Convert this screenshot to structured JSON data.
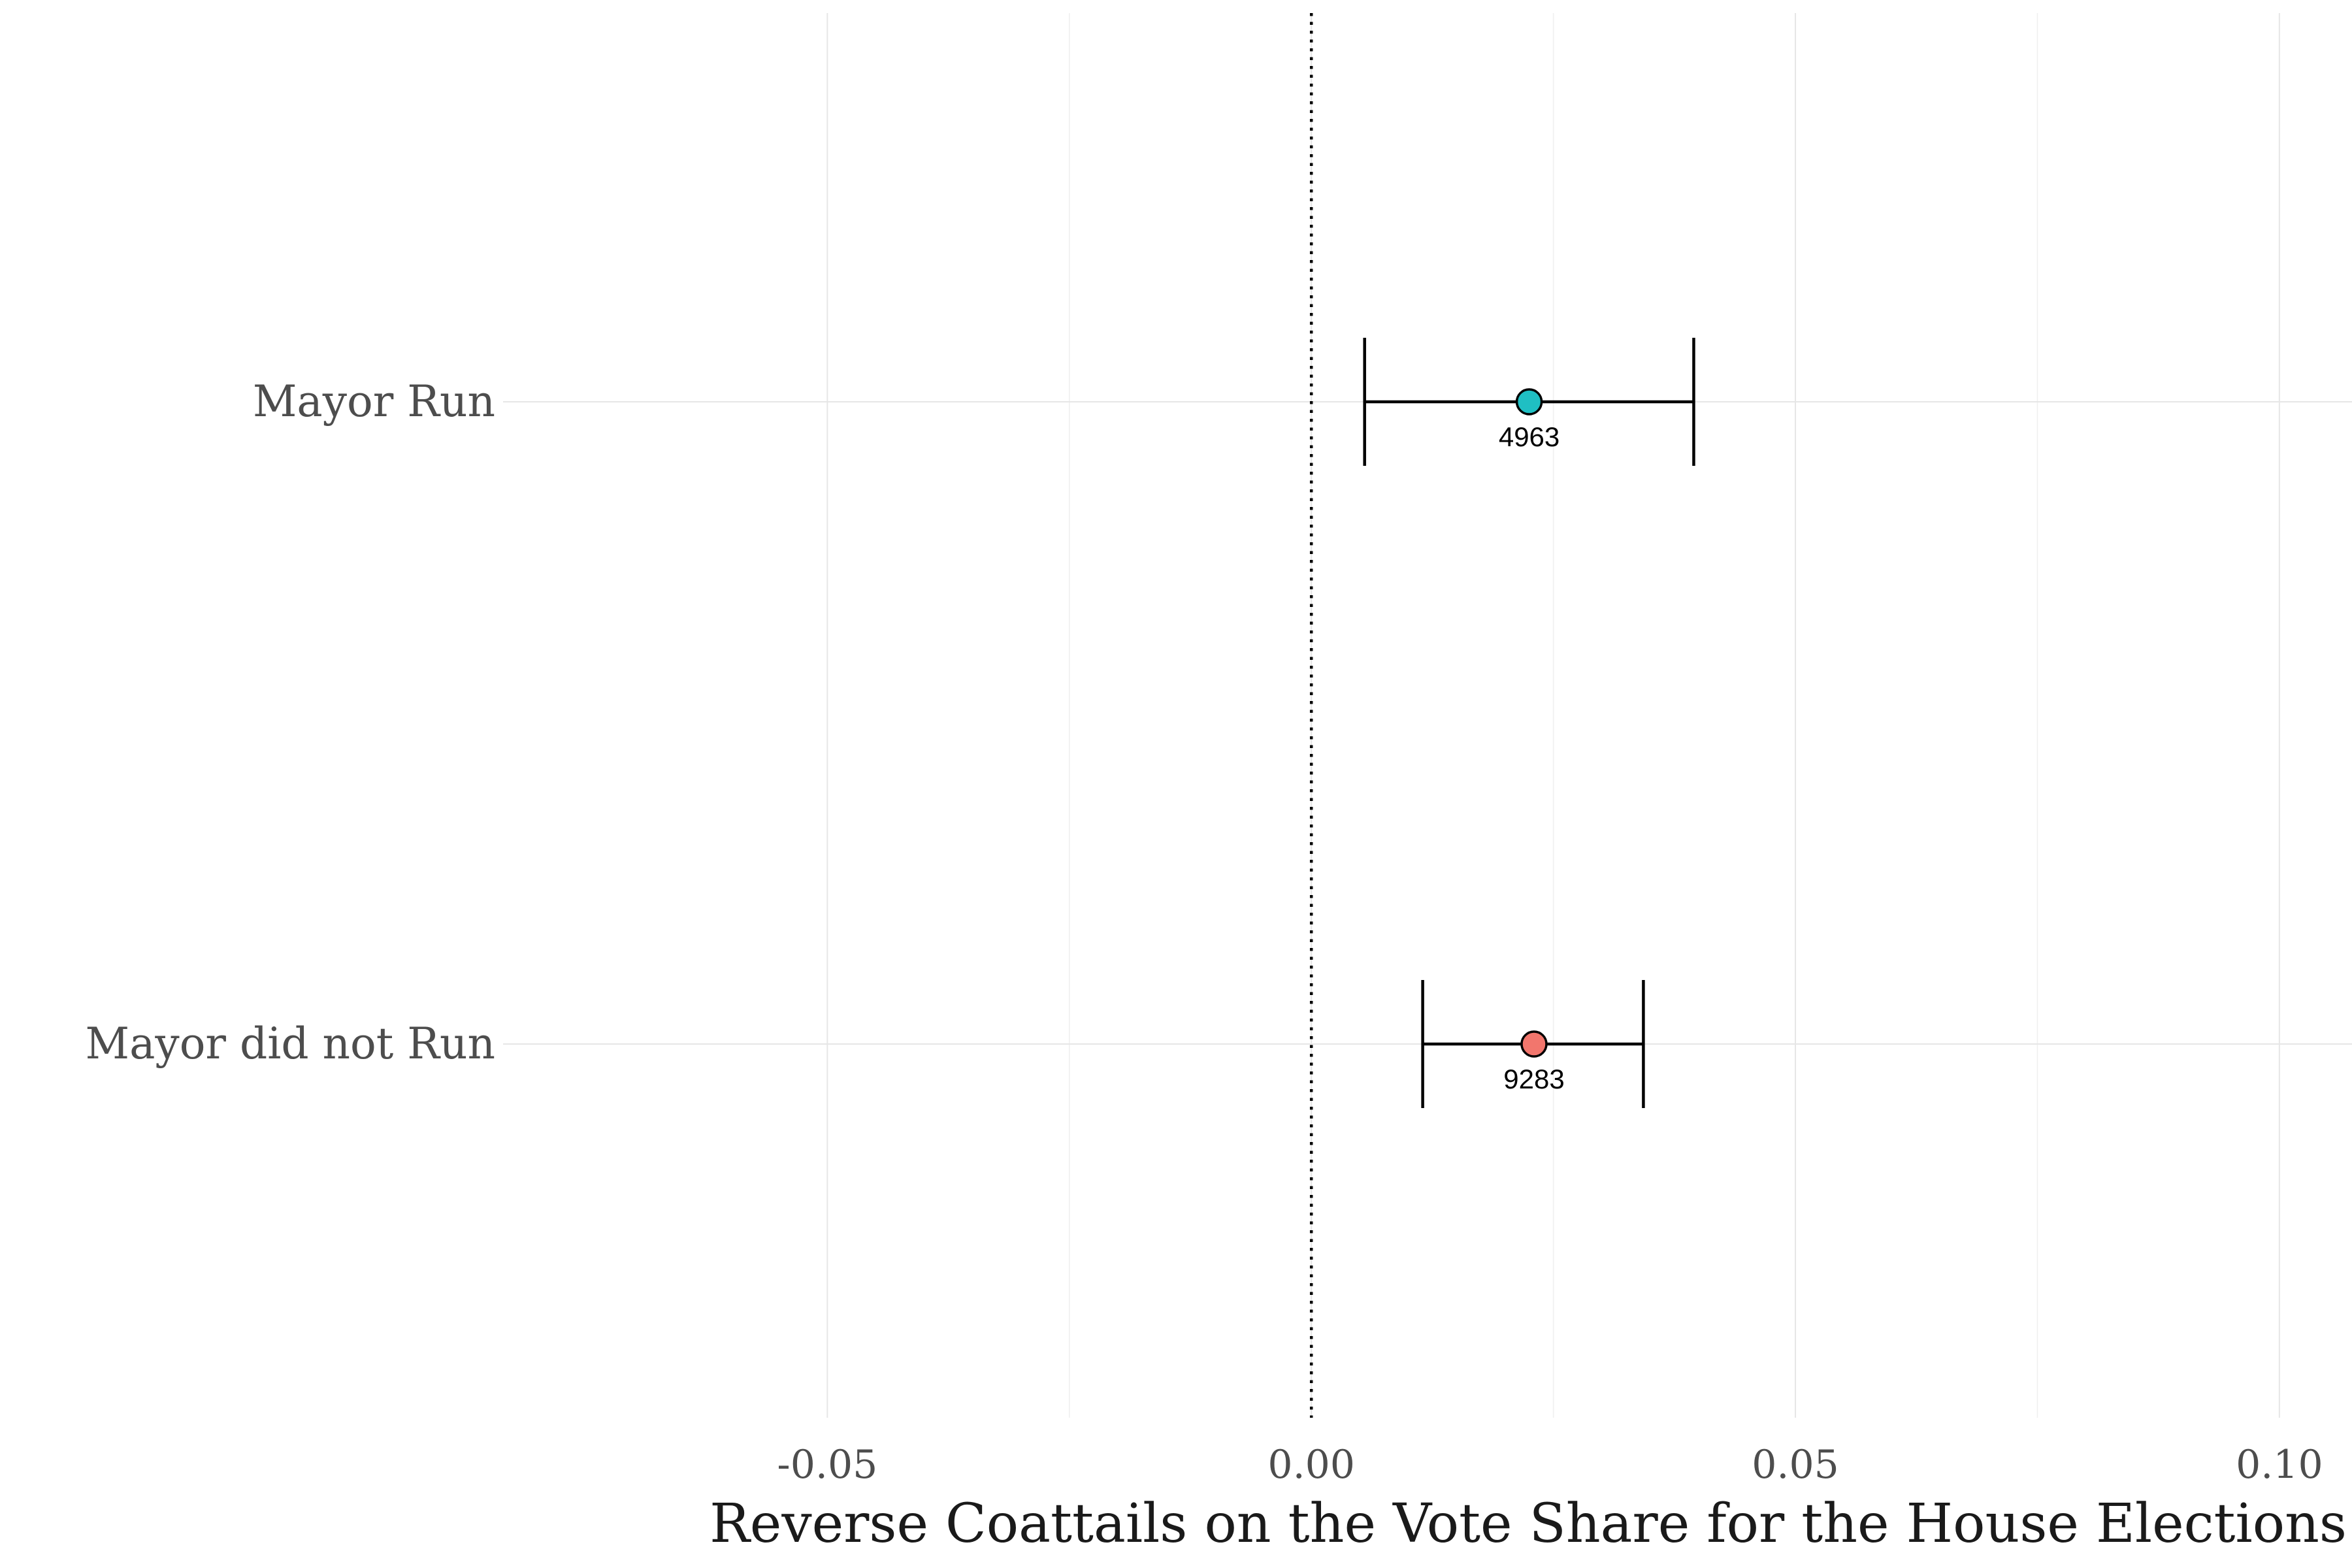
{
  "chart_data": {
    "type": "scatter",
    "subtype": "coefficient-plot",
    "title": "",
    "xlabel": "Reverse Coattails on the Vote Share for the House Elections",
    "ylabel": "",
    "xlim": [
      -0.0835,
      0.1075
    ],
    "x_ticks": [
      -0.05,
      0.0,
      0.05,
      0.1
    ],
    "x_tick_labels": [
      "-0.05",
      "0.00",
      "0.05",
      "0.10"
    ],
    "reference_line": 0.0,
    "grid": true,
    "legend": "none",
    "categories": [
      "Mayor Run",
      "Mayor did not Run"
    ],
    "estimates": [
      {
        "category": "Mayor Run",
        "estimate": 0.0225,
        "ci_low": 0.0055,
        "ci_high": 0.0395,
        "n": "4963",
        "color": "#1FBFC3"
      },
      {
        "category": "Mayor did not Run",
        "estimate": 0.023,
        "ci_low": 0.0115,
        "ci_high": 0.0343,
        "n": "9283",
        "color": "#F2766D"
      }
    ]
  }
}
